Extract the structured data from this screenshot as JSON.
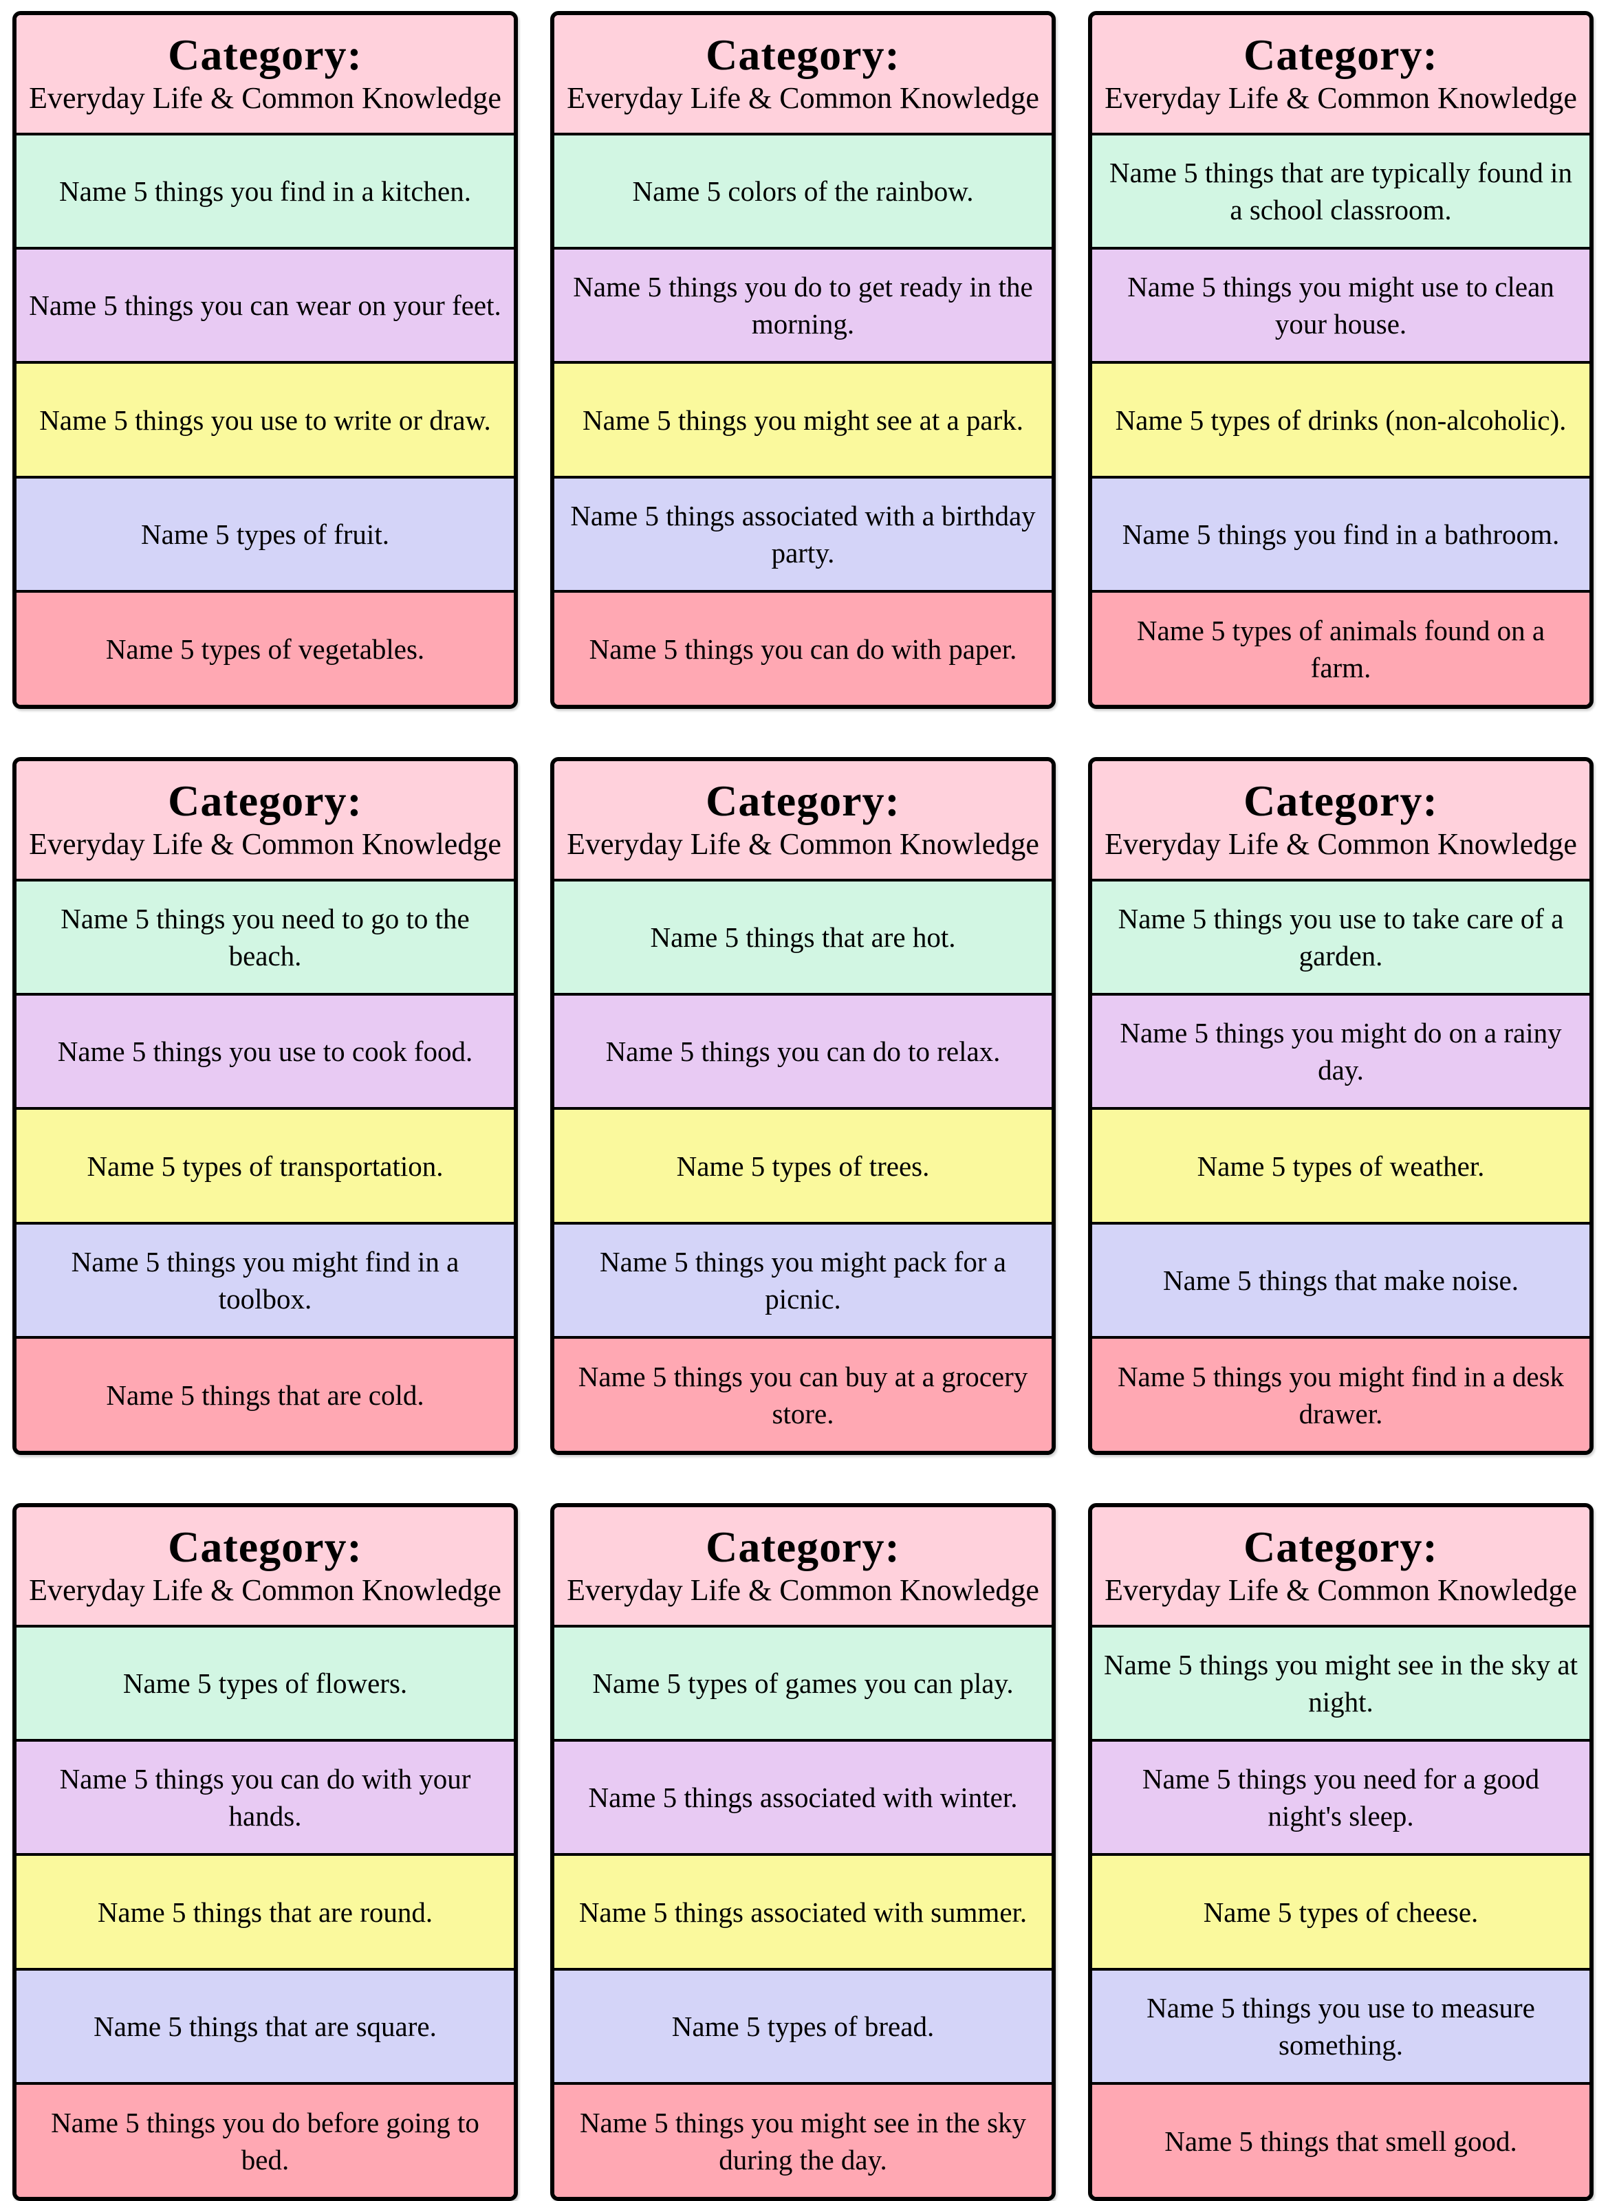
{
  "card_header": {
    "title": "Category:",
    "subtitle": "Everyday Life & Common Knowledge"
  },
  "colors": {
    "header": "#FFD1DC",
    "row1": "#D2F6E3",
    "row2": "#E8CAF3",
    "row3": "#FAF99D",
    "row4": "#D4D4F8",
    "row5": "#FFA8B3",
    "border": "#000000",
    "text": "#000000"
  },
  "cards": [
    {
      "prompts": [
        "Name 5 things you find in a kitchen.",
        "Name 5 things you can wear on your feet.",
        "Name 5 things you use to write or draw.",
        "Name 5 types of fruit.",
        "Name 5 types of vegetables."
      ]
    },
    {
      "prompts": [
        "Name 5 colors of the rainbow.",
        "Name 5 things you do to get ready in the morning.",
        "Name 5 things you might see at a park.",
        "Name 5 things associated with a birthday party.",
        "Name 5 things you can do with paper."
      ]
    },
    {
      "prompts": [
        "Name 5 things that are typically found in a school classroom.",
        "Name 5 things you might use to clean your house.",
        "Name 5 types of drinks (non-alcoholic).",
        "Name 5 things you find in a bathroom.",
        "Name 5 types of animals found on a farm."
      ]
    },
    {
      "prompts": [
        "Name 5 things you need to go to the beach.",
        "Name 5 things you use to cook food.",
        "Name 5 types of transportation.",
        "Name 5 things you might find in a toolbox.",
        "Name 5 things that are cold."
      ]
    },
    {
      "prompts": [
        "Name 5 things that are hot.",
        "Name 5 things you can do to relax.",
        "Name 5 types of trees.",
        "Name 5 things you might pack for a picnic.",
        "Name 5 things you can buy at a grocery store."
      ]
    },
    {
      "prompts": [
        "Name 5 things you use to take care of a garden.",
        "Name 5 things you might do on a rainy day.",
        "Name 5 types of weather.",
        "Name 5 things that make noise.",
        "Name 5 things you might find in a desk drawer."
      ]
    },
    {
      "prompts": [
        "Name 5 types of flowers.",
        "Name 5 things you can do with your hands.",
        "Name 5 things that are round.",
        "Name 5 things that are square.",
        "Name 5 things you do before going to bed."
      ]
    },
    {
      "prompts": [
        "Name 5 types of games you can play.",
        "Name 5 things associated with winter.",
        "Name 5 things associated with summer.",
        "Name 5 types of bread.",
        "Name 5 things you might see in the sky during the day."
      ]
    },
    {
      "prompts": [
        "Name 5 things you might see in the sky at night.",
        "Name 5 things you need for a good night's sleep.",
        "Name 5 types of cheese.",
        "Name 5 things you use to measure something.",
        "Name 5 things that smell good."
      ]
    }
  ]
}
